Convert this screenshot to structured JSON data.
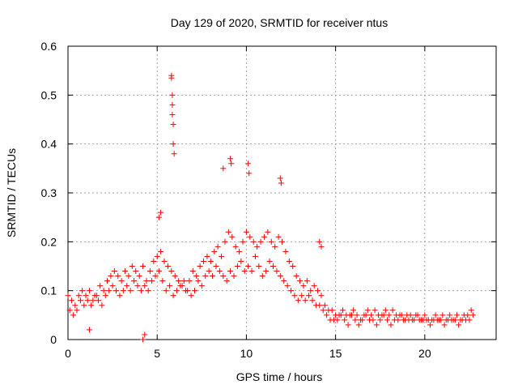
{
  "chart_data": {
    "type": "scatter",
    "title": "Day 129 of 2020, SRMTID for receiver ntus",
    "xlabel": "GPS time / hours",
    "ylabel": "SRMTID / TECUs",
    "xlim": [
      0,
      24
    ],
    "ylim": [
      0,
      0.6
    ],
    "xticks": [
      "0",
      "5",
      "10",
      "15",
      "20"
    ],
    "xtick_values": [
      0,
      5,
      10,
      15,
      20
    ],
    "yticks": [
      "0",
      "0.1",
      "0.2",
      "0.3",
      "0.4",
      "0.5",
      "0.6"
    ],
    "ytick_values": [
      0,
      0.1,
      0.2,
      0.3,
      0.4,
      0.5,
      0.6
    ],
    "grid": true,
    "marker": "+",
    "series": [
      {
        "name": "SRMTID ntus",
        "color": "#ff0000",
        "x": [
          0.0,
          0.2,
          0.4,
          0.6,
          0.8,
          1.0,
          1.2,
          1.4,
          1.6,
          1.8,
          2.0,
          2.2,
          2.4,
          2.6,
          2.8,
          3.0,
          3.2,
          3.4,
          3.6,
          3.8,
          4.0,
          4.2,
          4.4,
          4.6,
          4.8,
          5.0,
          5.2,
          5.4,
          5.6,
          5.8,
          6.0,
          6.2,
          6.4,
          6.6,
          6.8,
          7.0,
          7.2,
          7.4,
          7.6,
          7.8,
          8.0,
          8.2,
          8.4,
          8.6,
          8.8,
          9.0,
          9.2,
          9.4,
          9.6,
          9.8,
          10.0,
          10.2,
          10.4,
          10.6,
          10.8,
          11.0,
          11.2,
          11.4,
          11.6,
          11.8,
          12.0,
          12.2,
          12.4,
          12.6,
          12.8,
          13.0,
          13.2,
          13.4,
          13.6,
          13.8,
          14.0,
          14.2,
          14.4,
          14.6,
          14.8,
          15.0,
          15.2,
          15.4,
          15.6,
          15.8,
          16.0,
          16.2,
          16.4,
          16.6,
          16.8,
          17.0,
          17.2,
          17.4,
          17.6,
          17.8,
          18.0,
          18.2,
          18.4,
          18.6,
          18.8,
          19.0,
          19.2,
          19.4,
          19.6,
          19.8,
          20.0,
          20.2,
          20.4,
          20.6,
          20.8,
          21.0,
          21.2,
          21.4,
          21.6,
          21.8,
          22.0,
          22.2,
          22.4,
          22.6,
          22.7,
          0.1,
          0.3,
          0.5,
          0.7,
          0.9,
          1.1,
          1.3,
          1.5,
          1.7,
          1.9,
          2.1,
          2.3,
          2.5,
          2.7,
          2.9,
          3.1,
          3.3,
          3.5,
          3.7,
          3.9,
          4.1,
          4.3,
          4.5,
          4.7,
          4.9,
          5.1,
          5.3,
          5.5,
          5.7,
          5.9,
          6.1,
          6.3,
          6.5,
          6.7,
          6.9,
          7.1,
          7.3,
          7.5,
          7.7,
          7.9,
          8.1,
          8.3,
          8.5,
          8.7,
          8.9,
          9.1,
          9.3,
          9.5,
          9.7,
          9.9,
          10.1,
          10.3,
          10.5,
          10.7,
          10.9,
          11.1,
          11.3,
          11.5,
          11.7,
          11.9,
          12.1,
          12.3,
          12.5,
          12.7,
          12.9,
          13.1,
          13.3,
          13.5,
          13.7,
          13.9,
          14.1,
          14.3,
          14.5,
          14.7,
          14.9,
          15.1,
          15.3,
          15.5,
          15.7,
          15.9,
          16.1,
          16.3,
          16.5,
          16.7,
          16.9,
          17.1,
          17.3,
          17.5,
          17.7,
          17.9,
          18.1,
          18.3,
          18.5,
          18.7,
          18.9,
          19.1,
          19.3,
          19.5,
          19.7,
          19.9,
          20.1,
          20.3,
          20.5,
          20.7,
          20.9,
          21.1,
          21.3,
          21.5,
          21.7,
          21.9,
          22.1,
          22.3,
          22.5,
          5.8,
          5.8,
          5.85,
          5.85,
          5.85,
          5.9,
          5.9,
          5.95,
          8.7,
          9.1,
          9.15,
          10.1,
          10.15,
          11.9,
          11.95,
          4.2,
          4.3,
          1.2,
          14.1,
          14.2,
          5.1,
          5.2
        ],
        "y": [
          0.09,
          0.08,
          0.07,
          0.09,
          0.1,
          0.09,
          0.1,
          0.08,
          0.09,
          0.11,
          0.1,
          0.12,
          0.13,
          0.14,
          0.13,
          0.12,
          0.14,
          0.13,
          0.15,
          0.14,
          0.13,
          0.15,
          0.12,
          0.14,
          0.16,
          0.17,
          0.18,
          0.16,
          0.15,
          0.14,
          0.13,
          0.12,
          0.11,
          0.1,
          0.12,
          0.14,
          0.13,
          0.15,
          0.16,
          0.17,
          0.16,
          0.18,
          0.19,
          0.17,
          0.2,
          0.22,
          0.21,
          0.19,
          0.18,
          0.2,
          0.22,
          0.21,
          0.2,
          0.19,
          0.2,
          0.21,
          0.22,
          0.2,
          0.19,
          0.21,
          0.2,
          0.18,
          0.16,
          0.15,
          0.13,
          0.12,
          0.11,
          0.12,
          0.1,
          0.11,
          0.1,
          0.09,
          0.07,
          0.06,
          0.06,
          0.05,
          0.05,
          0.06,
          0.05,
          0.05,
          0.06,
          0.05,
          0.04,
          0.05,
          0.06,
          0.05,
          0.06,
          0.05,
          0.05,
          0.06,
          0.05,
          0.06,
          0.05,
          0.05,
          0.04,
          0.05,
          0.05,
          0.04,
          0.05,
          0.04,
          0.05,
          0.04,
          0.04,
          0.05,
          0.04,
          0.05,
          0.04,
          0.05,
          0.04,
          0.05,
          0.04,
          0.05,
          0.05,
          0.06,
          0.05,
          0.06,
          0.05,
          0.06,
          0.08,
          0.07,
          0.08,
          0.07,
          0.09,
          0.08,
          0.07,
          0.09,
          0.1,
          0.11,
          0.1,
          0.09,
          0.1,
          0.11,
          0.1,
          0.12,
          0.11,
          0.1,
          0.11,
          0.1,
          0.12,
          0.13,
          0.14,
          0.12,
          0.1,
          0.11,
          0.09,
          0.1,
          0.11,
          0.12,
          0.1,
          0.09,
          0.1,
          0.12,
          0.11,
          0.13,
          0.14,
          0.13,
          0.15,
          0.14,
          0.13,
          0.12,
          0.14,
          0.13,
          0.15,
          0.16,
          0.14,
          0.15,
          0.14,
          0.17,
          0.15,
          0.13,
          0.14,
          0.16,
          0.15,
          0.14,
          0.13,
          0.12,
          0.11,
          0.1,
          0.09,
          0.08,
          0.09,
          0.08,
          0.09,
          0.08,
          0.07,
          0.07,
          0.06,
          0.05,
          0.04,
          0.04,
          0.04,
          0.05,
          0.04,
          0.03,
          0.05,
          0.04,
          0.03,
          0.04,
          0.05,
          0.04,
          0.04,
          0.03,
          0.04,
          0.05,
          0.04,
          0.03,
          0.04,
          0.04,
          0.05,
          0.04,
          0.04,
          0.04,
          0.05,
          0.04,
          0.04,
          0.04,
          0.03,
          0.04,
          0.04,
          0.04,
          0.03,
          0.04,
          0.04,
          0.04,
          0.03,
          0.04,
          0.04,
          0.04,
          0.54,
          0.535,
          0.5,
          0.48,
          0.46,
          0.44,
          0.4,
          0.38,
          0.35,
          0.37,
          0.36,
          0.36,
          0.34,
          0.33,
          0.32,
          0.0,
          0.01,
          0.02,
          0.2,
          0.19,
          0.25,
          0.26
        ]
      }
    ]
  }
}
